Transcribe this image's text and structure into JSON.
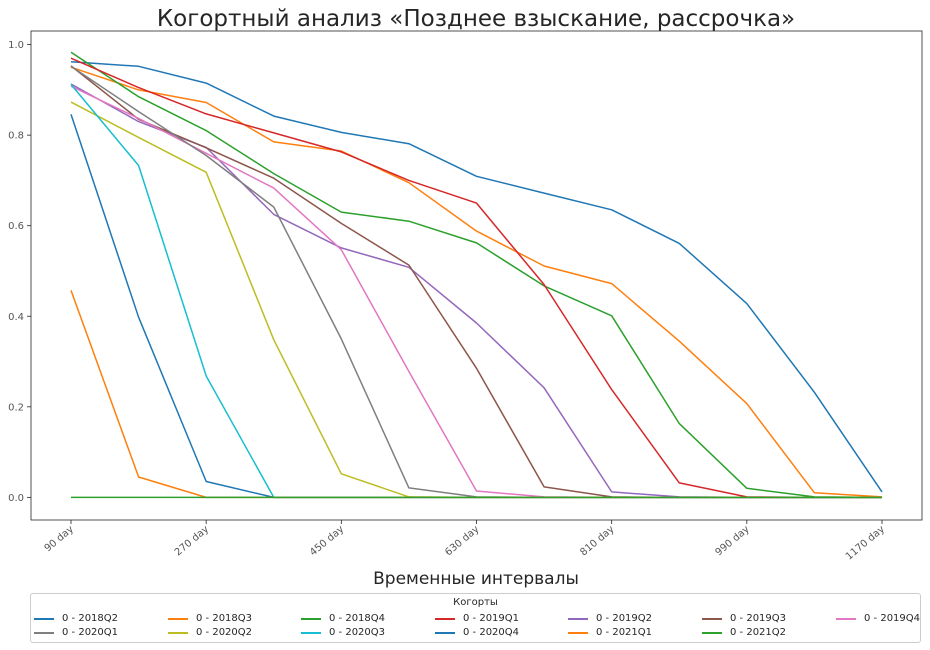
{
  "chart_data": {
    "type": "line",
    "title": "Когортный анализ «Позднее взыскание, рассрочка»",
    "xlabel": "Временные интервалы",
    "ylabel": "",
    "x": [
      "90 day",
      "180 day",
      "270 day",
      "360 day",
      "450 day",
      "540 day",
      "630 day",
      "720 day",
      "810 day",
      "900 day",
      "990 day",
      "1080 day",
      "1170 day"
    ],
    "x_tick_labels": [
      "90 day",
      "270 day",
      "450 day",
      "630 day",
      "810 day",
      "990 day",
      "1170 day"
    ],
    "y_ticks": [
      "0.0",
      "0.2",
      "0.4",
      "0.6",
      "0.8",
      "1.0"
    ],
    "ylim": [
      -0.05,
      1.03
    ],
    "grid": false,
    "legend": {
      "title": "Когорты",
      "placement": "bottom",
      "columns": 7
    },
    "series": [
      {
        "name": "0 - 2018Q2",
        "color": "#1f77b4",
        "values": [
          0.962,
          0.952,
          0.915,
          0.842,
          0.806,
          0.781,
          0.709,
          0.672,
          0.635,
          0.561,
          0.428,
          0.232,
          0.012
        ]
      },
      {
        "name": "0 - 2018Q3",
        "color": "#ff7f0e",
        "values": [
          0.95,
          0.9,
          0.872,
          0.785,
          0.765,
          0.695,
          0.588,
          0.511,
          0.472,
          0.345,
          0.207,
          0.01,
          0.001
        ]
      },
      {
        "name": "0 - 2018Q4",
        "color": "#2ca02c",
        "values": [
          0.983,
          0.885,
          0.81,
          0.715,
          0.63,
          0.61,
          0.562,
          0.467,
          0.401,
          0.163,
          0.02,
          0.001,
          0.0
        ]
      },
      {
        "name": "0 - 2019Q1",
        "color": "#d62728",
        "values": [
          0.97,
          0.905,
          0.847,
          0.805,
          0.763,
          0.7,
          0.65,
          0.47,
          0.238,
          0.032,
          0.001,
          0.0,
          0.0
        ]
      },
      {
        "name": "0 - 2019Q2",
        "color": "#9467bd",
        "values": [
          0.913,
          0.83,
          0.773,
          0.625,
          0.551,
          0.508,
          0.385,
          0.242,
          0.012,
          0.001,
          0.0,
          0.0,
          0.0
        ]
      },
      {
        "name": "0 - 2019Q3",
        "color": "#8c564b",
        "values": [
          0.953,
          0.835,
          0.772,
          0.705,
          0.605,
          0.513,
          0.285,
          0.023,
          0.001,
          0.0,
          0.0,
          0.0,
          0.0
        ]
      },
      {
        "name": "0 - 2019Q4",
        "color": "#e377c2",
        "values": [
          0.908,
          0.837,
          0.76,
          0.683,
          0.547,
          0.278,
          0.014,
          0.001,
          0.0,
          0.0,
          0.0,
          0.0,
          0.0
        ]
      },
      {
        "name": "0 - 2020Q1",
        "color": "#7f7f7f",
        "values": [
          0.952,
          0.852,
          0.755,
          0.641,
          0.35,
          0.021,
          0.001,
          0.0,
          0.0,
          0.0,
          0.0,
          0.0,
          0.0
        ]
      },
      {
        "name": "0 - 2020Q2",
        "color": "#bcbd22",
        "values": [
          0.873,
          0.795,
          0.718,
          0.348,
          0.052,
          0.001,
          0.0,
          0.0,
          0.0,
          0.0,
          0.0,
          0.0,
          0.0
        ]
      },
      {
        "name": "0 - 2020Q3",
        "color": "#17becf",
        "values": [
          0.912,
          0.733,
          0.268,
          0.0,
          0.0,
          0.0,
          0.0,
          0.0,
          0.0,
          0.0,
          0.0,
          0.0,
          0.0
        ]
      },
      {
        "name": "0 - 2020Q4",
        "color": "#1f77b4",
        "values": [
          0.846,
          0.398,
          0.035,
          0.0,
          0.0,
          0.0,
          0.0,
          0.0,
          0.0,
          0.0,
          0.0,
          0.0,
          0.0
        ]
      },
      {
        "name": "0 - 2021Q1",
        "color": "#ff7f0e",
        "values": [
          0.457,
          0.045,
          0.0,
          0.0,
          0.0,
          0.0,
          0.0,
          0.0,
          0.0,
          0.0,
          0.0,
          0.0,
          0.0
        ]
      },
      {
        "name": "0 - 2021Q2",
        "color": "#2ca02c",
        "values": [
          0.0,
          0.0,
          0.0,
          0.0,
          0.0,
          0.0,
          0.0,
          0.0,
          0.0,
          0.0,
          0.0,
          0.0,
          0.0
        ]
      }
    ]
  }
}
